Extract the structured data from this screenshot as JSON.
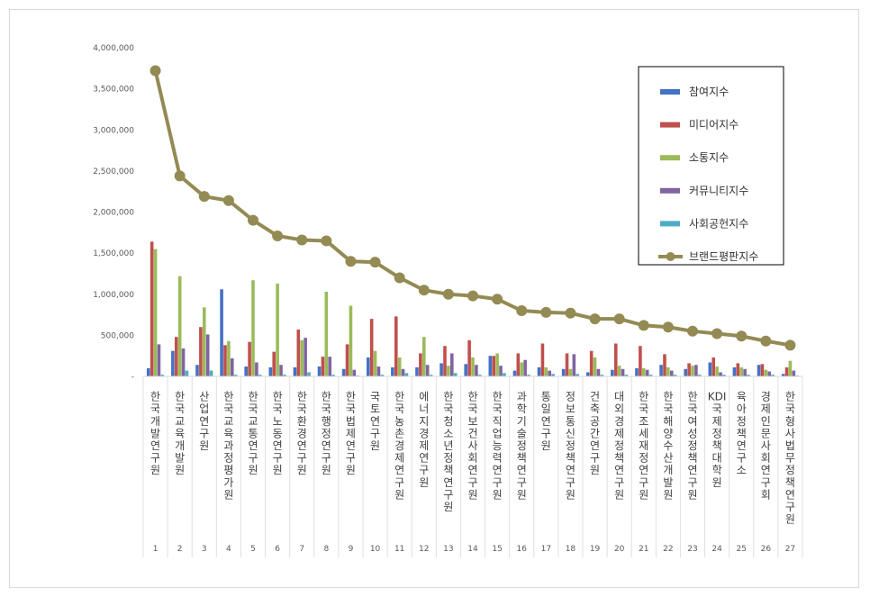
{
  "chart_data": {
    "type": "bar",
    "title": "",
    "xlabel": "",
    "ylabel": "",
    "ylim": [
      0,
      4000000
    ],
    "yticks": [
      "-",
      "500,000",
      "1,000,000",
      "1,500,000",
      "2,000,000",
      "2,500,000",
      "3,000,000",
      "3,500,000",
      "4,000,000"
    ],
    "grid": false,
    "legend_position": "top-right",
    "indices": [
      "1",
      "2",
      "3",
      "4",
      "5",
      "6",
      "7",
      "8",
      "9",
      "10",
      "11",
      "12",
      "13",
      "14",
      "15",
      "16",
      "17",
      "18",
      "19",
      "20",
      "21",
      "22",
      "23",
      "24",
      "25",
      "26",
      "27"
    ],
    "categories": [
      "한국개발연구원",
      "한국교육개발원",
      "산업연구원",
      "한국교육과정평가원",
      "한국교통연구원",
      "한국노동연구원",
      "한국환경연구원",
      "한국행정연구원",
      "한국법제연구원",
      "국토연구원",
      "한국농촌경제연구원",
      "에너지경제연구원",
      "한국청소년정책연구원",
      "한국보건사회연구원",
      "한국직업능력연구원",
      "과학기술정책연구원",
      "통일연구원",
      "정보통신정책연구원",
      "건축공간연구원",
      "대외경제정책연구원",
      "한국조세재정연구원",
      "한국해양수산개발원",
      "한국여성정책연구원",
      "KDI국제정책대학원",
      "육아정책연구소",
      "경제인문사회연구회",
      "한국형사법무정책연구원"
    ],
    "series": [
      {
        "name": "참여지수",
        "type": "bar",
        "color": "#4472c4",
        "values": [
          100000,
          310000,
          140000,
          1060000,
          120000,
          110000,
          110000,
          120000,
          90000,
          230000,
          110000,
          110000,
          160000,
          150000,
          250000,
          70000,
          110000,
          90000,
          50000,
          80000,
          100000,
          140000,
          90000,
          170000,
          110000,
          140000,
          30000
        ]
      },
      {
        "name": "미디어지수",
        "type": "bar",
        "color": "#c0504d",
        "values": [
          1640000,
          480000,
          600000,
          380000,
          420000,
          300000,
          570000,
          240000,
          390000,
          700000,
          730000,
          280000,
          370000,
          440000,
          250000,
          280000,
          400000,
          280000,
          310000,
          400000,
          370000,
          270000,
          160000,
          230000,
          160000,
          150000,
          110000
        ]
      },
      {
        "name": "소통지수",
        "type": "bar",
        "color": "#9bbb59",
        "values": [
          1550000,
          1220000,
          840000,
          430000,
          1170000,
          1130000,
          440000,
          1030000,
          860000,
          310000,
          230000,
          480000,
          130000,
          230000,
          280000,
          170000,
          110000,
          90000,
          230000,
          130000,
          100000,
          110000,
          130000,
          120000,
          110000,
          80000,
          190000
        ]
      },
      {
        "name": "커뮤니티지수",
        "type": "bar",
        "color": "#8064a2",
        "values": [
          390000,
          340000,
          510000,
          220000,
          170000,
          140000,
          470000,
          240000,
          80000,
          120000,
          90000,
          140000,
          280000,
          140000,
          130000,
          200000,
          70000,
          270000,
          90000,
          90000,
          80000,
          70000,
          140000,
          50000,
          90000,
          60000,
          70000
        ]
      },
      {
        "name": "사회공헌지수",
        "type": "bar",
        "color": "#4bacc6",
        "values": [
          20000,
          70000,
          70000,
          20000,
          20000,
          20000,
          50000,
          20000,
          10000,
          20000,
          40000,
          20000,
          40000,
          20000,
          40000,
          20000,
          30000,
          30000,
          20000,
          20000,
          20000,
          20000,
          20000,
          20000,
          20000,
          20000,
          10000
        ]
      },
      {
        "name": "브랜드평판지수",
        "type": "line",
        "color": "#948a54",
        "values": [
          3720000,
          2440000,
          2190000,
          2140000,
          1900000,
          1710000,
          1660000,
          1650000,
          1400000,
          1390000,
          1200000,
          1050000,
          1000000,
          980000,
          940000,
          800000,
          780000,
          770000,
          700000,
          700000,
          620000,
          600000,
          550000,
          520000,
          490000,
          430000,
          380000
        ]
      }
    ]
  }
}
